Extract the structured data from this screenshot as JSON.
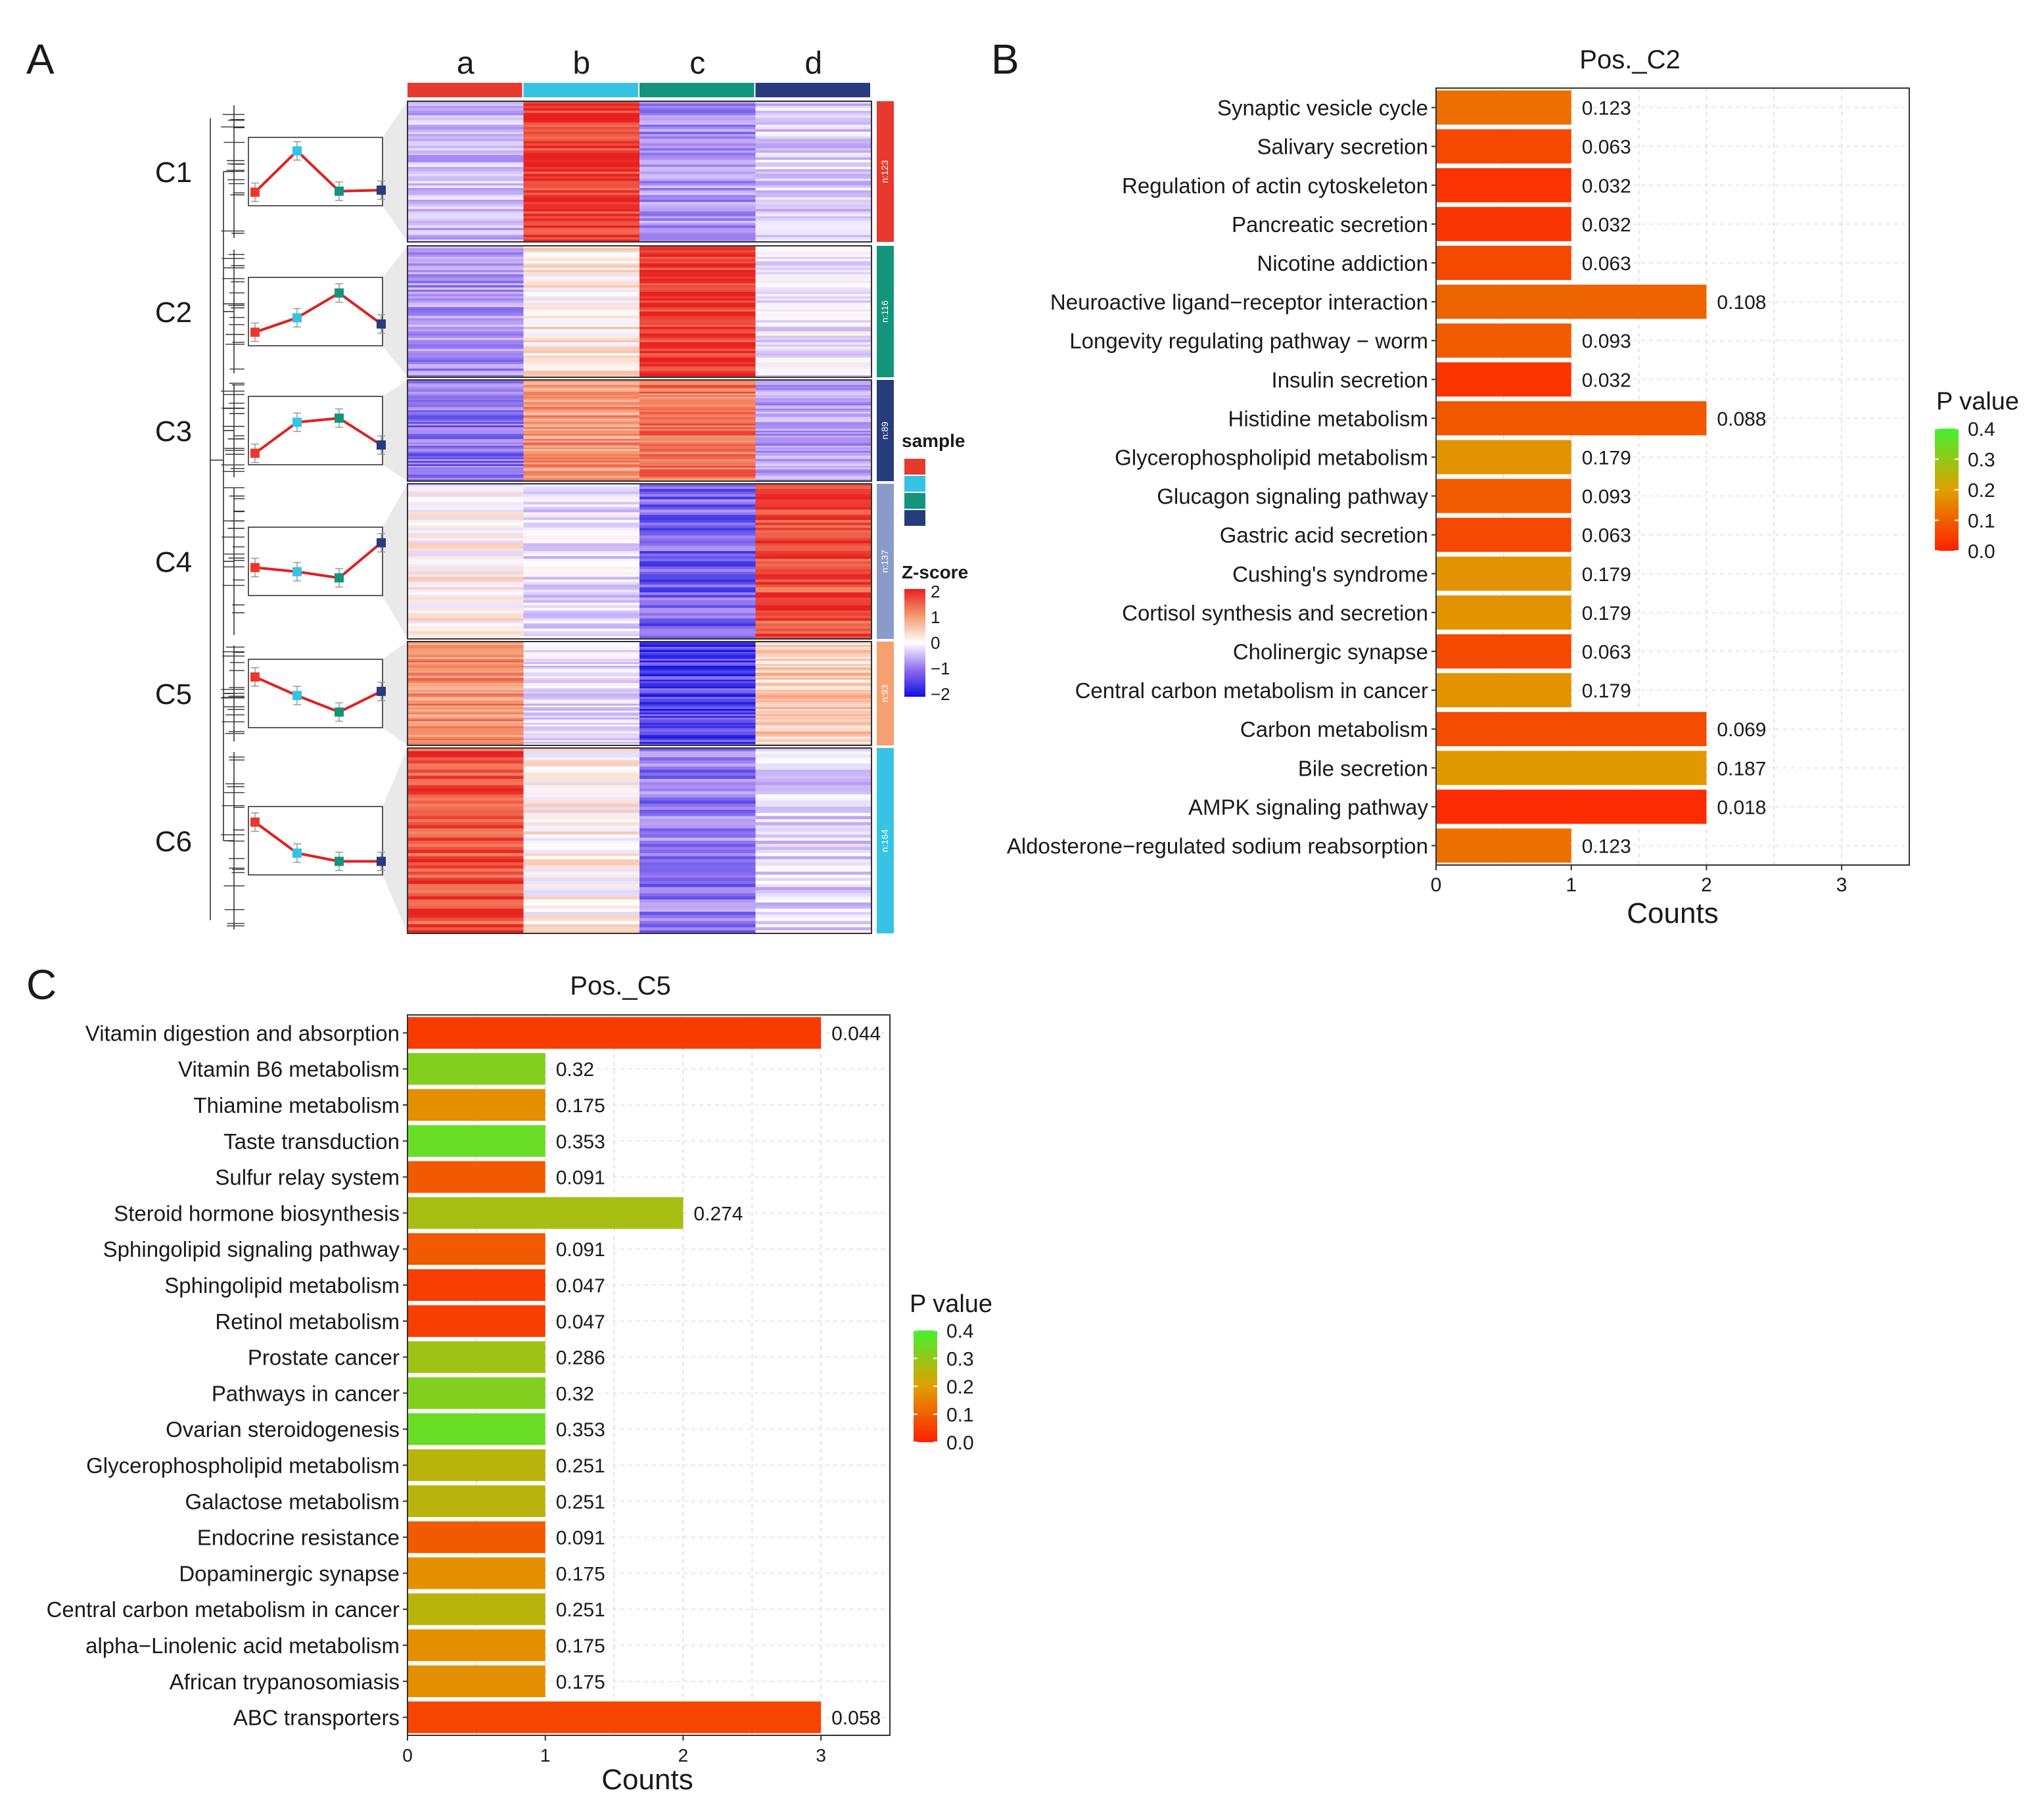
{
  "panels": {
    "a": "A",
    "b": "B",
    "c": "C"
  },
  "heatmap": {
    "columns": [
      "a",
      "b",
      "c",
      "d"
    ],
    "column_colors": [
      "#e8392f",
      "#36c3e3",
      "#12957a",
      "#273c7d"
    ],
    "clusters": [
      {
        "label": "C1",
        "n": "n:123",
        "color": "#e8392f",
        "means": [
          1.2,
          3.2,
          1.25,
          1.3
        ],
        "zscores": [
          -0.6,
          1.8,
          -0.9,
          -0.4
        ]
      },
      {
        "label": "C2",
        "n": "n:116",
        "color": "#12957a",
        "means": [
          1.2,
          1.9,
          3.1,
          1.6
        ],
        "zscores": [
          -0.9,
          0.2,
          1.8,
          -0.2
        ]
      },
      {
        "label": "C3",
        "n": "n:89",
        "color": "#273c7d",
        "means": [
          1.1,
          2.6,
          2.8,
          1.5
        ],
        "zscores": [
          -1.2,
          1.0,
          1.3,
          -0.8
        ]
      },
      {
        "label": "C4",
        "n": "n:137",
        "color": "#8a9bc8",
        "means": [
          1.9,
          1.7,
          1.4,
          3.1
        ],
        "zscores": [
          0.1,
          -0.3,
          -1.3,
          1.6
        ]
      },
      {
        "label": "C5",
        "n": "n:93",
        "color": "#f4a070",
        "means": [
          3.0,
          2.1,
          1.3,
          2.3
        ],
        "zscores": [
          1.1,
          -0.3,
          -1.6,
          0.5
        ]
      },
      {
        "label": "C6",
        "n": "n:164",
        "color": "#36c3e3",
        "means": [
          3.1,
          1.6,
          1.2,
          1.2
        ],
        "zscores": [
          1.6,
          0.1,
          -1.1,
          -0.4
        ]
      }
    ],
    "legend_sample_title": "sample",
    "legend_z_title": "Z-score",
    "legend_z_ticks": [
      "2",
      "1",
      "0",
      "−1",
      "−2"
    ]
  },
  "chart_data": [
    {
      "type": "bar",
      "title": "Pos._C2",
      "xlabel": "Counts",
      "ylabel": "",
      "xlim": [
        0,
        3.5
      ],
      "xticks": [
        "0",
        "1",
        "2",
        "3"
      ],
      "grid": true,
      "legend_title": "P value",
      "legend_ticks": [
        "0.4",
        "0.3",
        "0.2",
        "0.1",
        "0.0"
      ],
      "color_scale": [
        "#ff2000",
        "#e0a000",
        "#44f030"
      ],
      "categories": [
        "Synaptic vesicle cycle",
        "Salivary secretion",
        "Regulation of actin cytoskeleton",
        "Pancreatic secretion",
        "Nicotine addiction",
        "Neuroactive ligand−receptor interaction",
        "Longevity regulating pathway − worm",
        "Insulin secretion",
        "Histidine metabolism",
        "Glycerophospholipid metabolism",
        "Glucagon signaling pathway",
        "Gastric acid secretion",
        "Cushing's syndrome",
        "Cortisol synthesis and secretion",
        "Cholinergic synapse",
        "Central carbon metabolism in cancer",
        "Carbon metabolism",
        "Bile secretion",
        "AMPK signaling pathway",
        "Aldosterone−regulated sodium reabsorption"
      ],
      "values": [
        1,
        1,
        1,
        1,
        1,
        2,
        1,
        1,
        2,
        1,
        1,
        1,
        1,
        1,
        1,
        1,
        2,
        2,
        2,
        1
      ],
      "pvalues": [
        0.123,
        0.063,
        0.032,
        0.032,
        0.063,
        0.108,
        0.093,
        0.032,
        0.088,
        0.179,
        0.093,
        0.063,
        0.179,
        0.179,
        0.063,
        0.179,
        0.069,
        0.187,
        0.018,
        0.123
      ],
      "labels": [
        "0.123",
        "0.063",
        "0.032",
        "0.032",
        "0.063",
        "0.108",
        "0.093",
        "0.032",
        "0.088",
        "0.179",
        "0.093",
        "0.063",
        "0.179",
        "0.179",
        "0.063",
        "0.179",
        "0.069",
        "0.187",
        "0.018",
        "0.123"
      ]
    },
    {
      "type": "bar",
      "title": "Pos._C5",
      "xlabel": "Counts",
      "ylabel": "",
      "xlim": [
        0,
        3.5
      ],
      "xticks": [
        "0",
        "1",
        "2",
        "3"
      ],
      "grid": true,
      "legend_title": "P value",
      "legend_ticks": [
        "0.4",
        "0.3",
        "0.2",
        "0.1",
        "0.0"
      ],
      "color_scale": [
        "#ff2000",
        "#e0a000",
        "#44f030"
      ],
      "categories": [
        "Vitamin digestion and absorption",
        "Vitamin B6 metabolism",
        "Thiamine metabolism",
        "Taste transduction",
        "Sulfur relay system",
        "Steroid hormone biosynthesis",
        "Sphingolipid signaling pathway",
        "Sphingolipid metabolism",
        "Retinol metabolism",
        "Prostate cancer",
        "Pathways in cancer",
        "Ovarian steroidogenesis",
        "Glycerophospholipid metabolism",
        "Galactose metabolism",
        "Endocrine resistance",
        "Dopaminergic synapse",
        "Central carbon metabolism in cancer",
        "alpha−Linolenic acid metabolism",
        "African trypanosomiasis",
        "ABC transporters"
      ],
      "values": [
        3,
        1,
        1,
        1,
        1,
        2,
        1,
        1,
        1,
        1,
        1,
        1,
        1,
        1,
        1,
        1,
        1,
        1,
        1,
        3
      ],
      "pvalues": [
        0.044,
        0.32,
        0.175,
        0.353,
        0.091,
        0.274,
        0.091,
        0.047,
        0.047,
        0.286,
        0.32,
        0.353,
        0.251,
        0.251,
        0.091,
        0.175,
        0.251,
        0.175,
        0.175,
        0.058
      ],
      "labels": [
        "0.044",
        "0.32",
        "0.175",
        "0.353",
        "0.091",
        "0.274",
        "0.091",
        "0.047",
        "0.047",
        "0.286",
        "0.32",
        "0.353",
        "0.251",
        "0.251",
        "0.091",
        "0.175",
        "0.251",
        "0.175",
        "0.175",
        "0.058"
      ]
    }
  ]
}
